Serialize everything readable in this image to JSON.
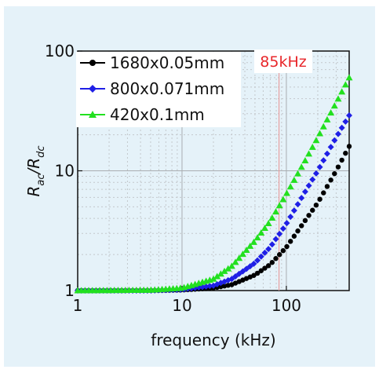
{
  "chart_data": {
    "type": "scatter",
    "xlabel": "frequency (kHz)",
    "ylabel_main": "R",
    "ylabel_sub1": "ac",
    "ylabel_slash": "/R",
    "ylabel_sub2": "dc",
    "x_scale": "log",
    "y_scale": "log",
    "xlim": [
      1,
      400
    ],
    "ylim": [
      1,
      100
    ],
    "x_ticks": [
      1,
      10,
      100
    ],
    "x_tick_labels": [
      "1",
      "10",
      "100"
    ],
    "y_ticks": [
      1,
      10,
      100
    ],
    "y_tick_labels": [
      "1",
      "10",
      "100"
    ],
    "grid": true,
    "legend_position": "top-left",
    "annotation": {
      "text": "85kHz",
      "x": 85,
      "color": "#e8262a"
    },
    "series": [
      {
        "name": "1680x0.05mm",
        "color": "#000000",
        "marker": "circle",
        "x": [
          1,
          5,
          10,
          20,
          30,
          50,
          70,
          100,
          150,
          200,
          300,
          400
        ],
        "y": [
          1.0,
          1.0,
          1.01,
          1.05,
          1.12,
          1.35,
          1.65,
          2.3,
          3.8,
          5.4,
          10.0,
          16.0
        ]
      },
      {
        "name": "800x0.071mm",
        "color": "#1f1fe6",
        "marker": "diamond",
        "x": [
          1,
          5,
          10,
          20,
          30,
          50,
          70,
          100,
          150,
          200,
          300,
          400
        ],
        "y": [
          1.0,
          1.0,
          1.02,
          1.1,
          1.25,
          1.7,
          2.3,
          3.6,
          6.6,
          10.0,
          19.0,
          29.0
        ]
      },
      {
        "name": "420x0.1mm",
        "color": "#22e01f",
        "marker": "triangle",
        "x": [
          1,
          5,
          10,
          20,
          30,
          50,
          70,
          100,
          150,
          200,
          300,
          400
        ],
        "y": [
          1.0,
          1.01,
          1.05,
          1.25,
          1.6,
          2.6,
          3.8,
          6.4,
          12.0,
          19.0,
          37.0,
          60.0
        ]
      }
    ]
  }
}
